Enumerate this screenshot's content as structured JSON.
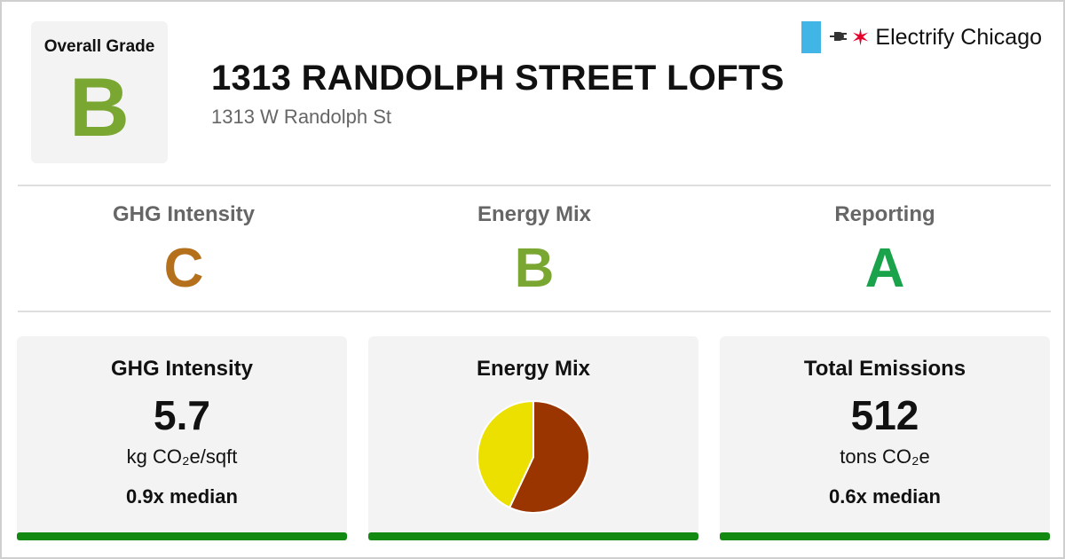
{
  "overall": {
    "label": "Overall Grade",
    "grade": "B",
    "grade_color": "#7aa632"
  },
  "building": {
    "name": "1313 RANDOLPH STREET LOFTS",
    "address": "1313 W Randolph St"
  },
  "logo": {
    "text": "Electrify Chicago",
    "icons": [
      "chicago-flag-stripe-icon",
      "plug-icon",
      "chicago-star-icon"
    ],
    "flag_color": "#41b6e6",
    "star_color": "#e4002b"
  },
  "subgrades": [
    {
      "label": "GHG Intensity",
      "grade": "C",
      "color": "#b5701b"
    },
    {
      "label": "Energy Mix",
      "grade": "B",
      "color": "#7aa632"
    },
    {
      "label": "Reporting",
      "grade": "A",
      "color": "#1aa34a"
    }
  ],
  "cards": {
    "ghg": {
      "title": "GHG Intensity",
      "value": "5.7",
      "unit": "kg CO₂e/sqft",
      "median": "0.9x median"
    },
    "mix": {
      "title": "Energy Mix"
    },
    "total": {
      "title": "Total Emissions",
      "value": "512",
      "unit": "tons CO₂e",
      "median": "0.6x median"
    },
    "bar_color": "#128a12"
  },
  "chart_data": {
    "type": "pie",
    "slices": [
      {
        "value": 57,
        "color": "#9a3500"
      },
      {
        "value": 43,
        "color": "#ece000"
      }
    ]
  }
}
